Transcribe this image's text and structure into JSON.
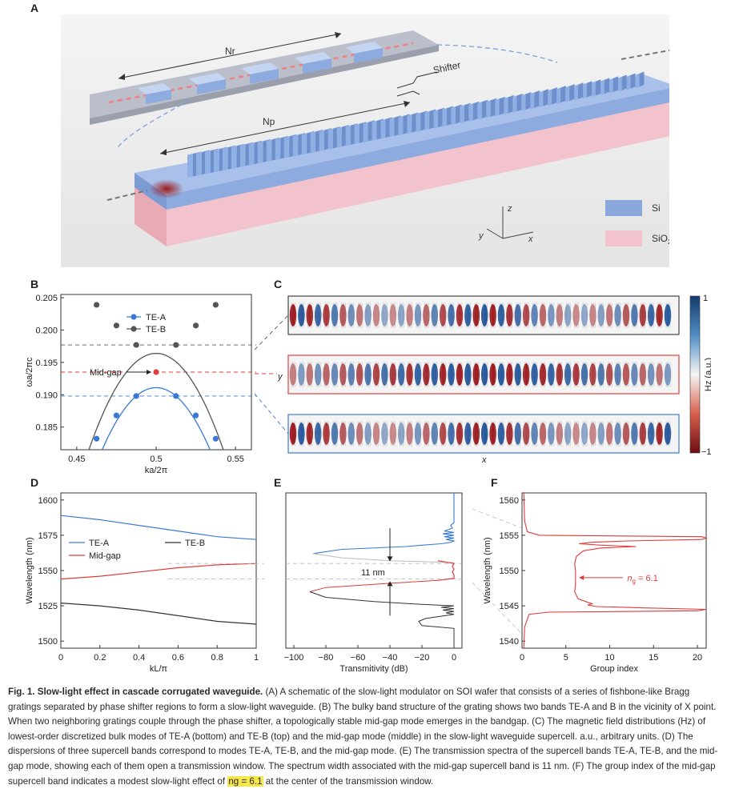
{
  "panels": {
    "A": {
      "label": "A",
      "nr": "Nr",
      "np": "Np",
      "shifter": "Shifter",
      "axes": {
        "z": "z",
        "y": "y",
        "x": "x"
      },
      "legend": [
        {
          "name": "Si",
          "color": "#8aa8dc"
        },
        {
          "name": "SiO",
          "sub": "2",
          "color": "#f2c3cc"
        }
      ]
    },
    "B": {
      "label": "B"
    },
    "C": {
      "label": "C",
      "colorbar_title": "Hz (a.u.)",
      "colorbar_max": "1",
      "colorbar_min": "−1",
      "xlabel": "x",
      "ylabel": "y"
    },
    "D": {
      "label": "D"
    },
    "E": {
      "label": "E",
      "annotation": "11 nm"
    },
    "F": {
      "label": "F",
      "annotation_prefix": "n",
      "annotation_sub": "g",
      "annotation_suffix": " = 6.1"
    }
  },
  "chart_data": [
    {
      "id": "B",
      "type": "line",
      "xlabel": "ka/2π",
      "ylabel": "ωa/2πc",
      "xlim": [
        0.44,
        0.56
      ],
      "ylim": [
        0.1815,
        0.2055
      ],
      "xticks": [
        "0.45",
        "0.5",
        "0.55"
      ],
      "xtick_values": [
        0.45,
        0.5,
        0.55
      ],
      "yticks": [
        "0.185",
        "0.190",
        "0.195",
        "0.200",
        "0.205"
      ],
      "ytick_values": [
        0.185,
        0.19,
        0.195,
        0.2,
        0.205
      ],
      "series": [
        {
          "name": "TE-A",
          "color": "#3a7ad5",
          "points": [
            [
              0.4625,
              0.1832
            ],
            [
              0.475,
              0.1868
            ],
            [
              0.4875,
              0.1898
            ],
            [
              0.5125,
              0.1898
            ],
            [
              0.525,
              0.1868
            ],
            [
              0.5375,
              0.1832
            ]
          ]
        },
        {
          "name": "TE-B",
          "color": "#555555",
          "points": [
            [
              0.4625,
              0.2039
            ],
            [
              0.475,
              0.2007
            ],
            [
              0.4875,
              0.1977
            ],
            [
              0.5125,
              0.1977
            ],
            [
              0.525,
              0.2007
            ],
            [
              0.5375,
              0.2039
            ]
          ]
        }
      ],
      "midgap": {
        "label": "Mid-gap",
        "x": 0.5,
        "y": 0.1935,
        "color": "#e03a3a"
      },
      "dashed_levels": [
        0.1977,
        0.1935,
        0.1898
      ]
    },
    {
      "id": "D",
      "type": "line",
      "xlabel": "kL/π",
      "ylabel": "Wavelength (nm)",
      "xlim": [
        0,
        1
      ],
      "ylim": [
        1495,
        1605
      ],
      "xticks": [
        "0",
        "0.2",
        "0.4",
        "0.6",
        "0.8",
        "1"
      ],
      "xtick_values": [
        0,
        0.2,
        0.4,
        0.6,
        0.8,
        1
      ],
      "yticks": [
        "1500",
        "1525",
        "1550",
        "1575",
        "1600"
      ],
      "ytick_values": [
        1500,
        1525,
        1550,
        1575,
        1600
      ],
      "series": [
        {
          "name": "TE-A",
          "color": "#3a7ad5",
          "x": [
            0,
            0.2,
            0.4,
            0.6,
            0.8,
            1
          ],
          "y": [
            1589,
            1586,
            1582,
            1578,
            1574,
            1572
          ]
        },
        {
          "name": "TE-B",
          "color": "#333333",
          "x": [
            0,
            0.2,
            0.4,
            0.6,
            0.8,
            1
          ],
          "y": [
            1527,
            1525,
            1522,
            1518,
            1514,
            1512
          ]
        },
        {
          "name": "Mid-gap",
          "color": "#e03a3a",
          "x": [
            0,
            0.2,
            0.4,
            0.6,
            0.8,
            1
          ],
          "y": [
            1544,
            1546,
            1549,
            1552,
            1554,
            1555
          ]
        }
      ],
      "legend_order": [
        "TE-A",
        "TE-B",
        "Mid-gap"
      ]
    },
    {
      "id": "E",
      "type": "line",
      "xlabel": "Transmitivity (dB)",
      "xlim": [
        -105,
        5
      ],
      "ylim": [
        1495,
        1605
      ],
      "xticks": [
        "−100",
        "−80",
        "−60",
        "−40",
        "−20",
        "0"
      ],
      "xtick_values": [
        -100,
        -80,
        -60,
        -40,
        -20,
        0
      ],
      "series": [
        {
          "name": "TE-A",
          "color": "#3a7ad5"
        },
        {
          "name": "TE-B",
          "color": "#333333"
        },
        {
          "name": "Mid-gap",
          "color": "#e03a3a"
        }
      ]
    },
    {
      "id": "F",
      "type": "line",
      "xlabel": "Group index",
      "ylabel": "Wavelength (nm)",
      "xlim": [
        0,
        21
      ],
      "ylim": [
        1539,
        1561
      ],
      "xticks": [
        "0",
        "5",
        "10",
        "15",
        "20"
      ],
      "xtick_values": [
        0,
        5,
        10,
        15,
        20
      ],
      "yticks": [
        "1540",
        "1545",
        "1550",
        "1555",
        "1560"
      ],
      "ytick_values": [
        1540,
        1545,
        1550,
        1555,
        1560
      ],
      "series": [
        {
          "name": "Mid-gap",
          "color": "#e03a3a"
        }
      ]
    }
  ],
  "caption": {
    "fig": "Fig. 1. Slow-light effect in cascade corrugated waveguide.",
    "p1": " (A) A schematic of the slow-light modulator on SOI wafer that consists of a series of fishbone-like Bragg gratings separated by phase shifter regions to form a slow-light waveguide. (B) The bulky band structure of the grating shows two bands TE-A and B in the vicinity of X point. When two neighboring gratings couple through the phase shifter, a topologically stable mid-gap mode emerges in the bandgap. (C) The magnetic field distributions (Hz) of lowest-order discretized bulk modes of TE-A (bottom) and TE-B (top) and the mid-gap mode (middle) in the slow-light waveguide supercell. a.u., arbitrary units. (D) The dispersions of three supercell bands correspond to modes TE-A, TE-B, and the mid-gap mode. (E) The transmission spectra of the supercell bands TE-A, TE-B, and the mid-gap mode, showing each of them open a transmission window. The spectrum width associated with the mid-gap supercell band is 11 nm. (F) The group index of the mid-gap supercell band indicates a modest slow-light effect of ",
    "highlight": "ng = 6.1",
    "p2": " at the center of the transmission window."
  }
}
